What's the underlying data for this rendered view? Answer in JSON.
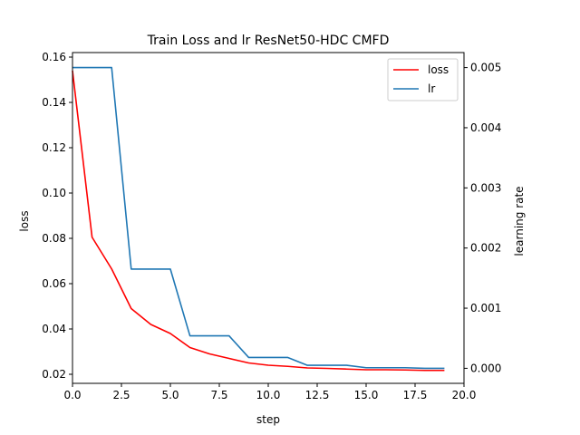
{
  "chart_data": {
    "type": "line",
    "title": "Train Loss and lr ResNet50-HDC CMFD",
    "xlabel": "step",
    "ylabel": "loss",
    "y2label": "learning rate",
    "xlim": [
      0,
      20
    ],
    "ylim": [
      0.016,
      0.162
    ],
    "y2lim": [
      -0.00025,
      0.00525
    ],
    "x_ticks": [
      0,
      2.5,
      5,
      7.5,
      10,
      12.5,
      15,
      17.5,
      20
    ],
    "x_tick_labels": [
      "0.0",
      "2.5",
      "5.0",
      "7.5",
      "10.0",
      "12.5",
      "15.0",
      "17.5",
      "20.0"
    ],
    "y_ticks": [
      0.02,
      0.04,
      0.06,
      0.08,
      0.1,
      0.12,
      0.14,
      0.16
    ],
    "y_tick_labels": [
      "0.02",
      "0.04",
      "0.06",
      "0.08",
      "0.10",
      "0.12",
      "0.14",
      "0.16"
    ],
    "y2_ticks": [
      0,
      0.001,
      0.002,
      0.003,
      0.004,
      0.005
    ],
    "y2_tick_labels": [
      "0.000",
      "0.001",
      "0.002",
      "0.003",
      "0.004",
      "0.005"
    ],
    "grid": false,
    "legend_position": "top-right",
    "x": [
      0,
      1,
      2,
      3,
      4,
      5,
      6,
      7,
      8,
      9,
      10,
      11,
      12,
      13,
      14,
      15,
      16,
      17,
      18,
      19
    ],
    "series": [
      {
        "name": "loss",
        "axis": "left",
        "color": "#ff0000",
        "values": [
          0.154,
          0.0805,
          0.0665,
          0.049,
          0.042,
          0.038,
          0.0318,
          0.029,
          0.027,
          0.025,
          0.024,
          0.0235,
          0.0228,
          0.0226,
          0.0223,
          0.022,
          0.022,
          0.0219,
          0.0217,
          0.0217
        ]
      },
      {
        "name": "lr",
        "axis": "right",
        "color": "#1f77b4",
        "values": [
          0.005,
          0.005,
          0.005,
          0.00165,
          0.00165,
          0.00165,
          0.00054,
          0.00054,
          0.00054,
          0.00018,
          0.00018,
          0.00018,
          5e-05,
          5e-05,
          5e-05,
          1e-05,
          1e-05,
          1e-05,
          0.0,
          0.0
        ]
      }
    ]
  }
}
